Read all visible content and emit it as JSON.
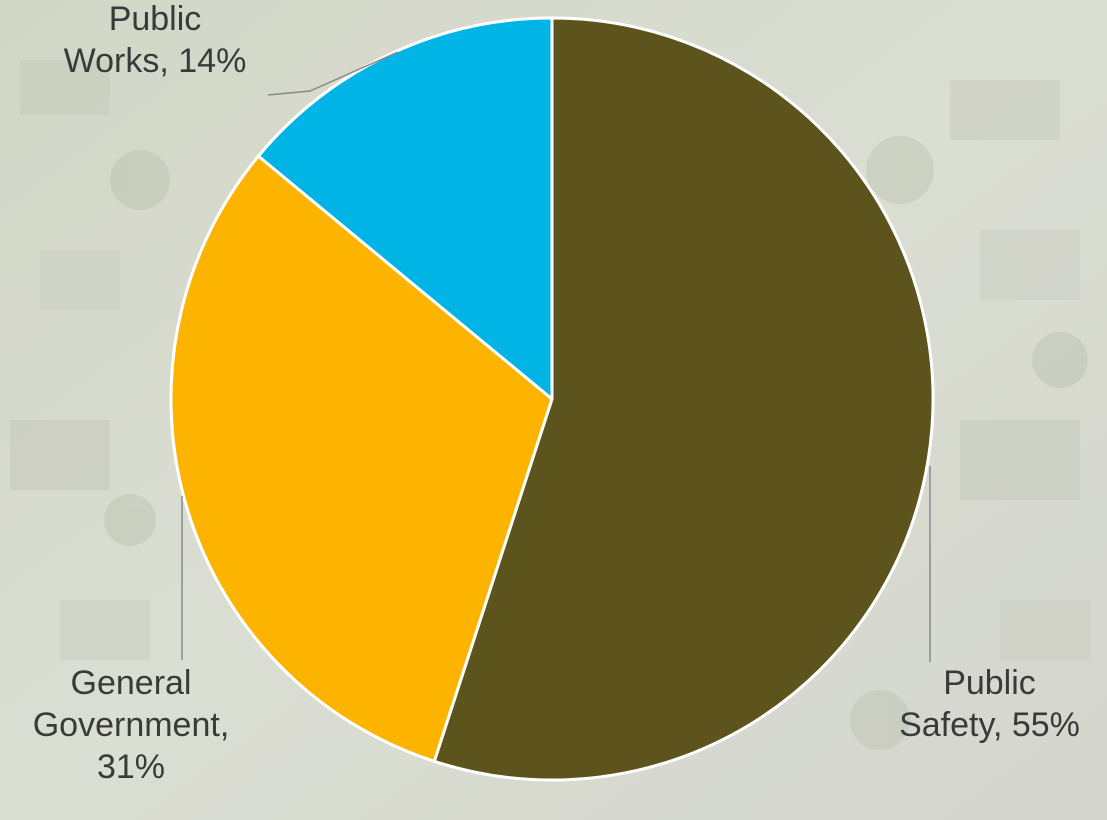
{
  "chart_data": {
    "type": "pie",
    "title": "",
    "slices": [
      {
        "name": "Public Safety",
        "value": 55,
        "color": "#5c541c"
      },
      {
        "name": "General Government",
        "value": 31,
        "color": "#fdb400"
      },
      {
        "name": "Public Works",
        "value": 14,
        "color": "#00b4e6"
      }
    ],
    "data_labels": [
      {
        "category_line1": "Public",
        "category_line2": "Safety,",
        "value_text": "55%"
      },
      {
        "category_line1": "General",
        "category_line2": "Government,",
        "value_text": "31%"
      },
      {
        "category_line1": "Public",
        "category_line2": "Works,",
        "value_text": "14%"
      }
    ],
    "legend": "none",
    "start_angle": "12 o'clock",
    "direction": "clockwise"
  }
}
